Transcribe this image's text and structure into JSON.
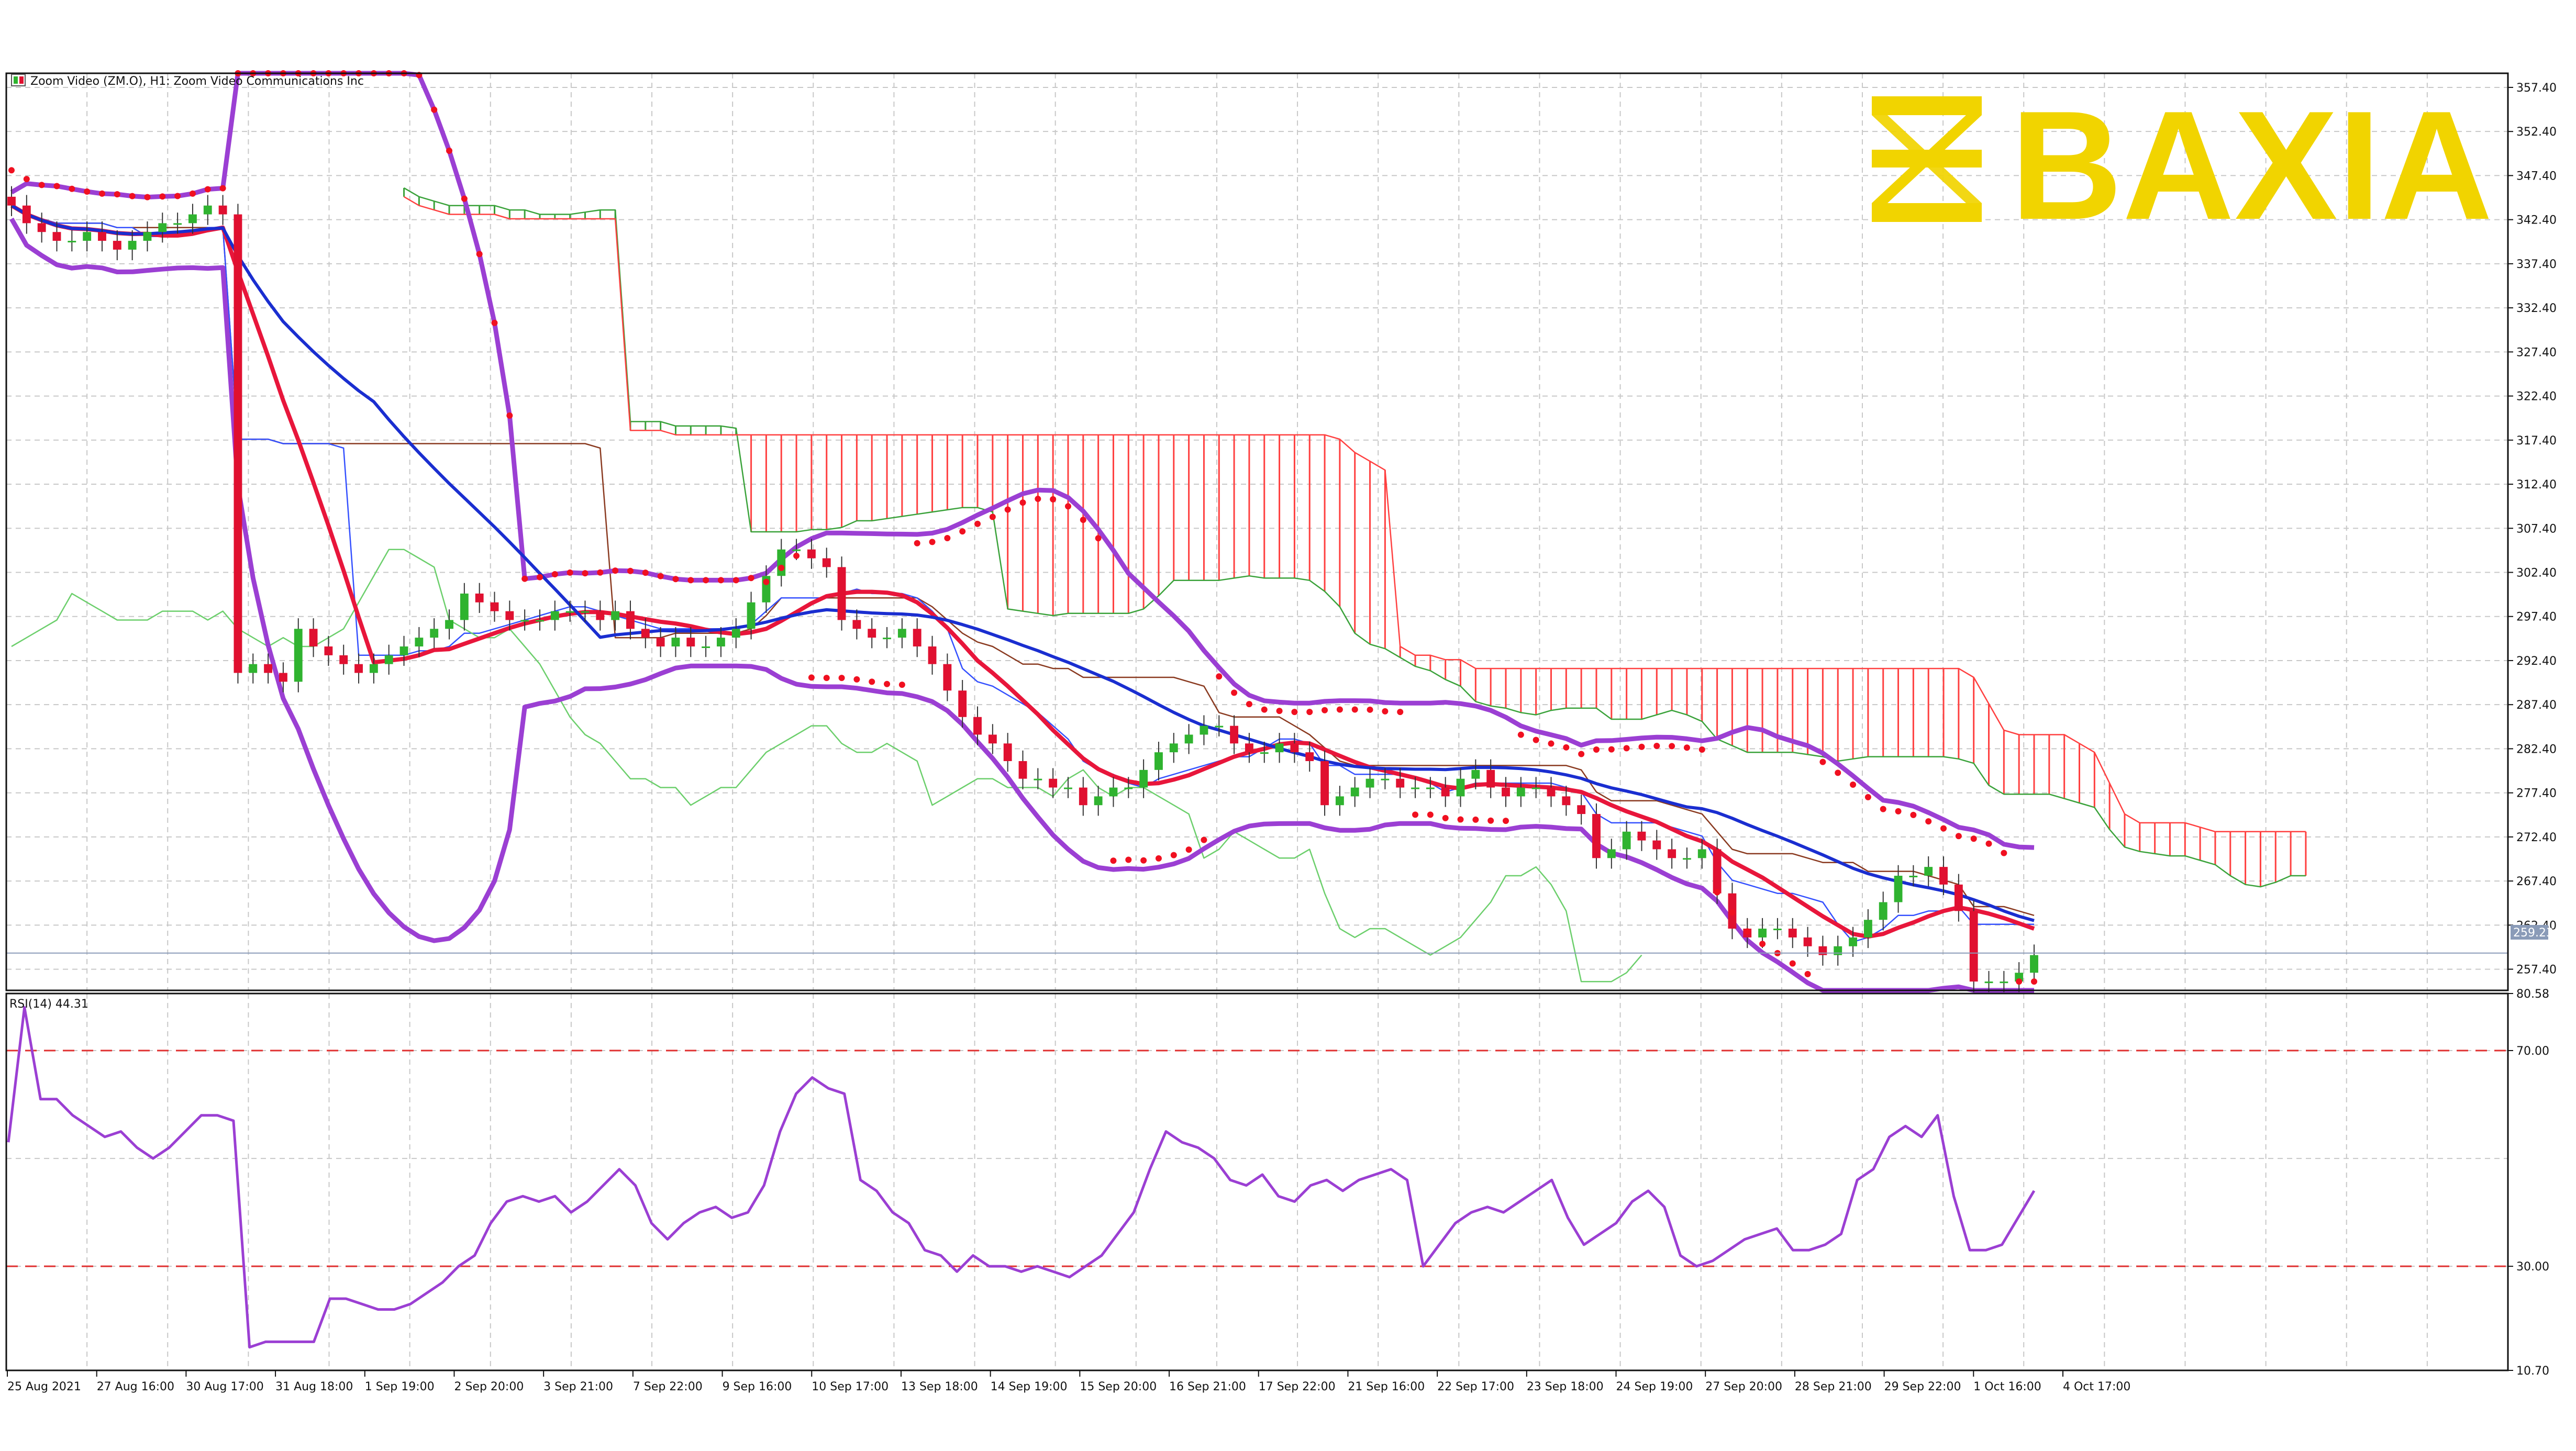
{
  "header": {
    "symbol_info": "Zoom Video (ZM.O), H1:  Zoom Video Communications Inc"
  },
  "watermark": {
    "text": "BAXIA",
    "color": "#f1d400"
  },
  "rsi_panel": {
    "label": "RSI(14) 44.31"
  },
  "current_price_label": "259.23",
  "colors": {
    "ma_red": "#e8163b",
    "ma_blue": "#1a2ed0",
    "bollinger": "#9b3fd3",
    "sar": "#f01020",
    "cloud_red": "#ff4040",
    "cloud_green": "#3aa23a",
    "kijun": "#8a3a20",
    "tenkan": "#3450ff",
    "chikou": "#6ccf6c",
    "candle_up": "#2fb32f",
    "candle_down": "#e01030",
    "rsi": "#9b3fd3",
    "rsi_level": "#e03030",
    "grid": "#c8c8c8"
  },
  "chart_data": [
    {
      "type": "candlestick",
      "title": "Zoom Video (ZM.O), H1:  Zoom Video Communications Inc",
      "ylim": [
        255,
        359
      ],
      "y_ticks": [
        257.4,
        262.4,
        267.4,
        272.4,
        277.4,
        282.4,
        287.4,
        292.4,
        297.4,
        302.4,
        307.4,
        312.4,
        317.4,
        322.4,
        327.4,
        332.4,
        337.4,
        342.4,
        347.4,
        352.4,
        357.4
      ],
      "y_tick_labels": [
        "257.40",
        "262.40",
        "267.40",
        "272.40",
        "277.40",
        "282.40",
        "287.40",
        "292.40",
        "297.40",
        "302.40",
        "307.40",
        "312.40",
        "317.40",
        "322.40",
        "327.40",
        "332.40",
        "337.40",
        "342.40",
        "347.40",
        "352.40",
        "357.40"
      ],
      "x_labels": [
        "25 Aug 2021",
        "27 Aug 16:00",
        "30 Aug 17:00",
        "31 Aug 18:00",
        "1 Sep 19:00",
        "2 Sep 20:00",
        "3 Sep 21:00",
        "7 Sep 22:00",
        "9 Sep 16:00",
        "10 Sep 17:00",
        "13 Sep 18:00",
        "14 Sep 19:00",
        "15 Sep 20:00",
        "16 Sep 21:00",
        "17 Sep 22:00",
        "21 Sep 16:00",
        "22 Sep 17:00",
        "23 Sep 18:00",
        "24 Sep 19:00",
        "27 Sep 20:00",
        "28 Sep 21:00",
        "29 Sep 22:00",
        "1 Oct 16:00",
        "4 Oct 17:00"
      ],
      "last_price": 259.23,
      "grid": true,
      "close": [
        344,
        342,
        341,
        340,
        340,
        341,
        340,
        339,
        340,
        341,
        342,
        342,
        343,
        344,
        343,
        291,
        292,
        291,
        290,
        296,
        294,
        293,
        292,
        291,
        292,
        293,
        294,
        295,
        296,
        297,
        300,
        299,
        298,
        297,
        297,
        297,
        298,
        298,
        298,
        297,
        298,
        296,
        295,
        294,
        295,
        294,
        294,
        295,
        296,
        299,
        302,
        305,
        305,
        304,
        303,
        297,
        296,
        295,
        295,
        296,
        294,
        292,
        289,
        286,
        284,
        283,
        281,
        279,
        279,
        278,
        278,
        276,
        277,
        278,
        278,
        280,
        282,
        283,
        284,
        285,
        285,
        283,
        282,
        282,
        283,
        282,
        281,
        276,
        277,
        278,
        279,
        279,
        278,
        278,
        278,
        277,
        279,
        280,
        278,
        277,
        278,
        278,
        277,
        276,
        275,
        270,
        271,
        273,
        272,
        271,
        270,
        270,
        271,
        266,
        262,
        261,
        262,
        262,
        261,
        260,
        259,
        260,
        261,
        263,
        265,
        268,
        268,
        269,
        267,
        264,
        256,
        256,
        256,
        257,
        259
      ],
      "y_range_on_screen": "last visible close in view",
      "indicators": [
        "Moving Average (red)",
        "Moving Average (blue)",
        "Bollinger Bands",
        "Parabolic SAR",
        "Ichimoku Kinko Hyo"
      ]
    },
    {
      "type": "line",
      "title": "RSI(14) 44.31",
      "ylim": [
        10.7,
        80.58
      ],
      "y_ticks": [
        10.7,
        30.0,
        70.0,
        80.58
      ],
      "y_tick_labels": [
        "10.70",
        "30.00",
        "70.00",
        "80.58"
      ],
      "levels": [
        30,
        70
      ],
      "values": [
        53,
        78,
        61,
        61,
        58,
        56,
        54,
        55,
        52,
        50,
        52,
        55,
        58,
        58,
        57,
        15,
        16,
        16,
        16,
        16,
        24,
        24,
        23,
        22,
        22,
        23,
        25,
        27,
        30,
        32,
        38,
        42,
        43,
        42,
        43,
        40,
        42,
        45,
        48,
        45,
        38,
        35,
        38,
        40,
        41,
        39,
        40,
        45,
        55,
        62,
        65,
        63,
        62,
        46,
        44,
        40,
        38,
        33,
        32,
        29,
        32,
        30,
        30,
        29,
        30,
        29,
        28,
        30,
        32,
        36,
        40,
        48,
        55,
        53,
        52,
        50,
        46,
        45,
        47,
        43,
        42,
        45,
        46,
        44,
        46,
        47,
        48,
        46,
        30,
        34,
        38,
        40,
        41,
        40,
        42,
        44,
        46,
        39,
        34,
        36,
        38,
        42,
        44,
        41,
        32,
        30,
        31,
        33,
        35,
        36,
        37,
        33,
        33,
        34,
        36,
        46,
        48,
        54,
        56,
        54,
        58,
        43,
        33,
        33,
        34,
        39,
        44
      ]
    }
  ]
}
